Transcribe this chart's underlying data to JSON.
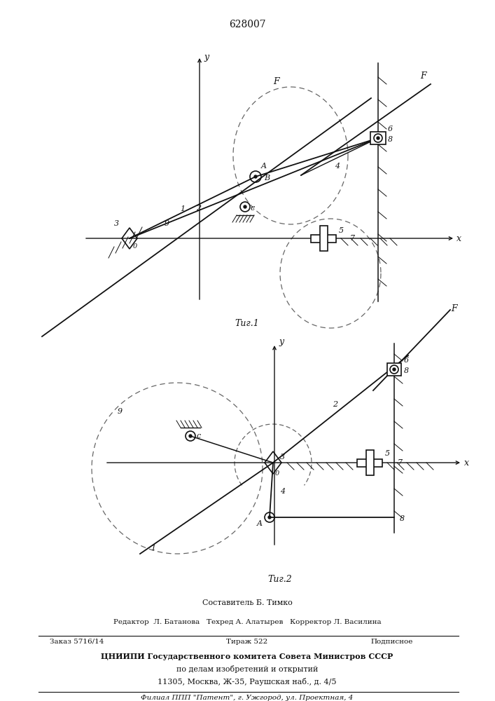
{
  "patent_number": "628007",
  "fig1_caption": "Τиг.1",
  "fig2_caption": "Τиг.2",
  "footer_line0": "Составитель Б. Тимко",
  "footer_line1": "Редактор  Л. Батанова   Техред А. Алатырев   Корректор Л. Василина",
  "footer_line2a": "Заказ 5716/14",
  "footer_line2b": "Тираж 522",
  "footer_line2c": "Подписное",
  "footer_line3": "ЦНИИПИ Государственного комитета Совета Министров СССР",
  "footer_line4": "по делам изобретений и открытий",
  "footer_line5": "11305, Москва, Ж-35, Раушская наб., д. 4/5",
  "footer_line6": "Филиал ППП \"Патент\", г. Ужгород, ул. Проектная, 4",
  "lc": "#111111",
  "dc": "#666666"
}
